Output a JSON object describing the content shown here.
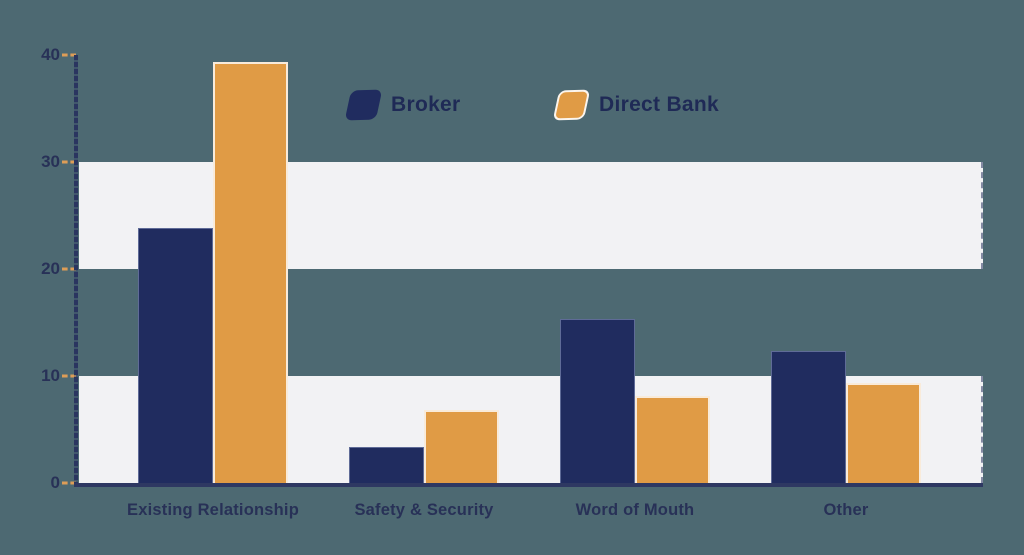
{
  "chart_data": {
    "type": "bar",
    "title": "",
    "xlabel": "",
    "ylabel": "",
    "categories": [
      "Existing Relationship",
      "Safety & Security",
      "Word of Mouth",
      "Other"
    ],
    "series": [
      {
        "name": "Broker",
        "color": "#202c5f",
        "values": [
          23.8,
          3.4,
          15.3,
          12.3
        ]
      },
      {
        "name": "Direct Bank",
        "color": "#e09b45",
        "values": [
          39.3,
          6.8,
          8.1,
          9.3
        ]
      }
    ],
    "ylim": [
      0,
      40
    ],
    "yticks": [
      0,
      10,
      20,
      30,
      40
    ],
    "bands": [
      [
        0,
        10
      ],
      [
        20,
        30
      ]
    ],
    "grid": "alternating-horizontal-bands",
    "legend_position": "top-center"
  },
  "colors": {
    "background": "#4d6972",
    "band": "#f2f2f4",
    "axis": "#2e3862",
    "tick_dash": "#dd9d57",
    "text": "#283157"
  }
}
